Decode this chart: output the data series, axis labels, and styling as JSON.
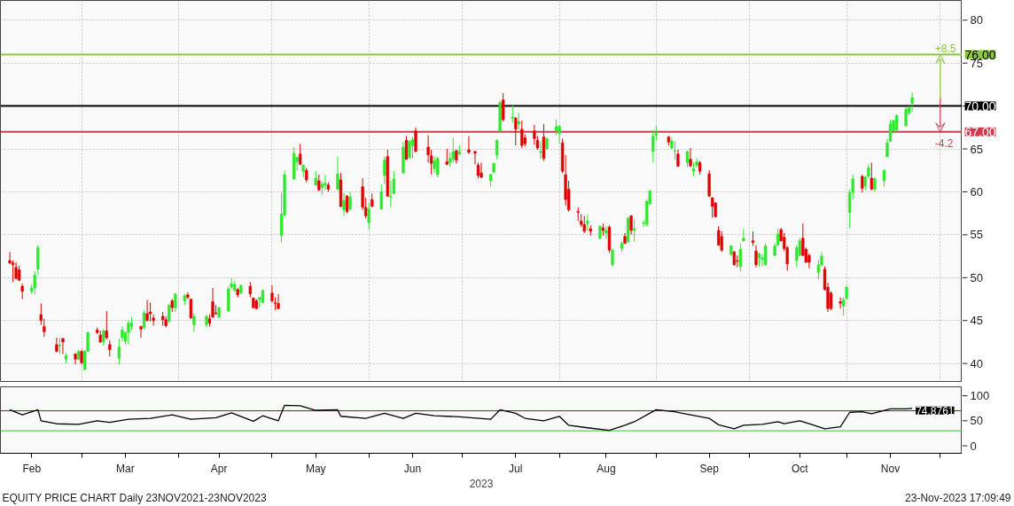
{
  "chart_data": [
    {
      "type": "candlestick",
      "x": [
        "2023-02-06",
        "2023-02-07",
        "2023-02-08",
        "2023-02-09",
        "2023-02-10",
        "2023-02-13",
        "2023-02-14",
        "2023-02-15",
        "2023-02-16",
        "2023-02-17",
        "2023-02-21",
        "2023-02-22",
        "2023-02-23",
        "2023-02-24",
        "2023-02-27",
        "2023-02-28",
        "2023-03-01",
        "2023-03-02",
        "2023-03-03",
        "2023-03-06",
        "2023-03-07",
        "2023-03-08",
        "2023-03-09",
        "2023-03-10",
        "2023-03-13",
        "2023-03-14",
        "2023-03-15",
        "2023-03-16",
        "2023-03-17",
        "2023-03-20",
        "2023-03-21",
        "2023-03-22",
        "2023-03-23",
        "2023-03-24",
        "2023-03-27",
        "2023-03-28",
        "2023-03-29",
        "2023-03-30",
        "2023-03-31",
        "2023-04-03",
        "2023-04-04",
        "2023-04-05",
        "2023-04-06",
        "2023-04-10",
        "2023-04-11",
        "2023-04-12",
        "2023-04-13",
        "2023-04-14",
        "2023-04-17",
        "2023-04-18",
        "2023-04-19",
        "2023-04-20",
        "2023-04-21",
        "2023-04-24",
        "2023-04-25",
        "2023-04-26",
        "2023-04-27",
        "2023-04-28",
        "2023-05-01",
        "2023-05-02",
        "2023-05-03",
        "2023-05-04",
        "2023-05-05",
        "2023-05-08",
        "2023-05-09",
        "2023-05-10",
        "2023-05-11",
        "2023-05-12",
        "2023-05-15",
        "2023-05-16",
        "2023-05-17",
        "2023-05-18",
        "2023-05-19",
        "2023-05-22",
        "2023-05-23",
        "2023-05-24",
        "2023-05-25",
        "2023-05-26",
        "2023-05-30",
        "2023-05-31",
        "2023-06-01",
        "2023-06-02",
        "2023-06-05",
        "2023-06-06",
        "2023-06-07",
        "2023-06-08",
        "2023-06-09",
        "2023-06-12",
        "2023-06-13",
        "2023-06-14",
        "2023-06-15",
        "2023-06-16",
        "2023-06-20",
        "2023-06-21",
        "2023-06-22",
        "2023-06-23",
        "2023-06-26",
        "2023-06-27",
        "2023-06-28",
        "2023-06-29",
        "2023-06-30",
        "2023-07-03",
        "2023-07-05",
        "2023-07-06",
        "2023-07-07",
        "2023-07-10",
        "2023-07-11",
        "2023-07-12",
        "2023-07-13",
        "2023-07-14",
        "2023-07-17",
        "2023-07-18",
        "2023-07-19",
        "2023-07-20",
        "2023-07-21",
        "2023-07-24",
        "2023-07-25",
        "2023-07-26",
        "2023-07-27",
        "2023-07-28",
        "2023-07-31",
        "2023-08-01",
        "2023-08-02",
        "2023-08-03",
        "2023-08-04",
        "2023-08-07",
        "2023-08-08",
        "2023-08-09",
        "2023-08-10",
        "2023-08-11",
        "2023-08-14",
        "2023-08-15",
        "2023-08-16",
        "2023-08-17",
        "2023-08-18",
        "2023-08-21",
        "2023-08-22",
        "2023-08-23",
        "2023-08-24",
        "2023-08-25",
        "2023-08-28",
        "2023-08-29",
        "2023-08-30",
        "2023-08-31",
        "2023-09-01",
        "2023-09-05",
        "2023-09-06",
        "2023-09-07",
        "2023-09-08",
        "2023-09-11",
        "2023-09-12",
        "2023-09-13",
        "2023-09-14",
        "2023-09-15",
        "2023-09-18",
        "2023-09-19",
        "2023-09-20",
        "2023-09-21",
        "2023-09-22",
        "2023-09-25",
        "2023-09-26",
        "2023-09-27",
        "2023-09-28",
        "2023-09-29",
        "2023-10-02",
        "2023-10-03",
        "2023-10-04",
        "2023-10-05",
        "2023-10-06",
        "2023-10-09",
        "2023-10-10",
        "2023-10-11",
        "2023-10-12",
        "2023-10-13",
        "2023-10-16",
        "2023-10-17",
        "2023-10-18",
        "2023-10-19",
        "2023-10-20",
        "2023-10-23",
        "2023-10-24",
        "2023-10-25",
        "2023-10-26",
        "2023-10-27",
        "2023-10-30",
        "2023-10-31",
        "2023-11-01",
        "2023-11-02",
        "2023-11-03",
        "2023-11-06",
        "2023-11-07",
        "2023-11-08",
        "2023-11-09",
        "2023-11-10",
        "2023-11-13",
        "2023-11-14",
        "2023-11-15",
        "2023-11-16",
        "2023-11-17",
        "2023-11-20",
        "2023-11-21",
        "2023-11-22"
      ],
      "ohlc": [
        [
          52.0,
          53.0,
          51.6,
          51.7
        ],
        [
          51.7,
          52.0,
          49.5,
          51.5
        ],
        [
          51.2,
          51.8,
          49.8,
          49.9
        ],
        [
          50.9,
          51.4,
          49.6,
          49.7
        ],
        [
          49.0,
          49.3,
          47.5,
          48.4
        ],
        [
          48.4,
          49.2,
          48.1,
          48.8
        ],
        [
          48.8,
          50.8,
          48.1,
          50.3
        ],
        [
          51.0,
          53.8,
          50.4,
          53.5
        ],
        [
          45.7,
          47.0,
          44.5,
          45.0
        ],
        [
          44.3,
          45.2,
          43.1,
          43.7
        ],
        [
          42.2,
          43.0,
          41.3,
          41.4
        ],
        [
          42.05,
          43.0,
          41.1,
          42.15
        ],
        [
          42.9,
          43.0,
          41.1,
          42.5
        ],
        [
          40.5,
          41.2,
          40.0,
          40.9
        ],
        [
          41.1,
          41.2,
          39.9,
          40.5
        ],
        [
          40.5,
          41.6,
          40.4,
          41.4
        ],
        [
          41.4,
          41.6,
          39.9,
          40.1
        ],
        [
          39.3,
          41.6,
          39.2,
          41.4
        ],
        [
          41.4,
          43.7,
          41.3,
          43.6
        ],
        [
          43.9,
          44.2,
          43.4,
          43.6
        ],
        [
          43.3,
          43.8,
          42.4,
          42.5
        ],
        [
          42.5,
          44.0,
          42.1,
          43.8
        ],
        [
          43.8,
          46.1,
          42.8,
          43.0
        ],
        [
          42.2,
          42.7,
          40.8,
          41.6
        ],
        [
          40.6,
          42.9,
          39.9,
          41.9
        ],
        [
          43.0,
          44.3,
          42.6,
          43.9
        ],
        [
          42.6,
          43.7,
          42.2,
          43.6
        ],
        [
          43.6,
          45.0,
          42.2,
          44.7
        ],
        [
          44.3,
          45.4,
          43.9,
          44.7
        ],
        [
          44.3,
          44.4,
          43.0,
          44.0
        ],
        [
          44.2,
          46.2,
          44.0,
          45.9
        ],
        [
          45.8,
          47.4,
          44.9,
          45.0
        ],
        [
          46.0,
          47.1,
          44.9,
          45.8
        ],
        [
          45.3,
          45.7,
          44.4,
          45.0
        ],
        [
          45.5,
          46.0,
          44.4,
          45.1
        ],
        [
          45.1,
          45.5,
          44.2,
          44.4
        ],
        [
          44.9,
          46.9,
          44.8,
          46.8
        ],
        [
          47.3,
          47.5,
          46.0,
          46.5
        ],
        [
          46.5,
          48.2,
          46.0,
          48.1
        ],
        [
          47.3,
          48.1,
          46.8,
          47.9
        ],
        [
          48.0,
          48.3,
          47.5,
          47.7
        ],
        [
          47.5,
          47.5,
          45.2,
          45.3
        ],
        [
          44.5,
          45.8,
          43.7,
          45.5
        ],
        [
          44.5,
          45.7,
          44.2,
          45.5
        ],
        [
          45.2,
          45.7,
          44.3,
          44.7
        ],
        [
          47.2,
          48.8,
          45.3,
          45.4
        ],
        [
          45.9,
          46.8,
          45.7,
          45.8
        ],
        [
          45.4,
          46.6,
          45.3,
          46.5
        ],
        [
          46.1,
          48.9,
          46.0,
          48.7
        ],
        [
          48.9,
          49.9,
          48.7,
          49.3
        ],
        [
          48.5,
          49.6,
          48.4,
          49.2
        ],
        [
          48.6,
          48.8,
          47.7,
          48.0
        ],
        [
          48.2,
          49.2,
          48.1,
          49.1
        ],
        [
          49.0,
          49.5,
          47.7,
          48.1
        ],
        [
          47.6,
          47.7,
          46.4,
          46.5
        ],
        [
          47.3,
          47.5,
          46.3,
          46.4
        ],
        [
          47.4,
          47.7,
          46.5,
          47.7
        ],
        [
          47.1,
          48.6,
          47.0,
          48.5
        ],
        [
          48.2,
          49.1,
          47.1,
          47.3
        ],
        [
          47.1,
          47.7,
          46.2,
          47.0
        ],
        [
          47.0,
          48.1,
          46.3,
          46.4
        ],
        [
          54.9,
          59.9,
          54.1,
          57.4
        ],
        [
          57.3,
          62.5,
          57.1,
          62.0
        ],
        [
          61.5,
          65.2,
          61.4,
          64.5
        ],
        [
          63.5,
          64.1,
          62.5,
          64.0
        ],
        [
          64.4,
          65.6,
          63.1,
          63.2
        ],
        [
          62.4,
          63.2,
          61.7,
          63.1
        ],
        [
          62.5,
          62.8,
          61.1,
          61.4
        ],
        [
          60.8,
          62.4,
          60.7,
          61.6
        ],
        [
          61.3,
          62.0,
          60.1,
          60.2
        ],
        [
          60.5,
          61.2,
          59.6,
          60.9
        ],
        [
          60.8,
          62.0,
          60.2,
          61.0
        ],
        [
          60.8,
          61.1,
          60.0,
          60.3
        ],
        [
          60.3,
          64.1,
          60.2,
          62.1
        ],
        [
          61.4,
          62.2,
          58.2,
          58.3
        ],
        [
          57.9,
          59.9,
          57.2,
          59.0
        ],
        [
          59.5,
          59.6,
          57.5,
          57.7
        ],
        [
          58.0,
          60.0,
          57.8,
          59.4
        ],
        [
          60.6,
          61.6,
          57.9,
          58.2
        ],
        [
          58.2,
          59.3,
          56.9,
          57.2
        ],
        [
          56.4,
          58.7,
          55.6,
          58.0
        ],
        [
          59.1,
          59.8,
          58.2,
          58.3
        ],
        [
          58.0,
          60.9,
          57.9,
          60.0
        ],
        [
          61.9,
          64.1,
          60.9,
          63.7
        ],
        [
          64.1,
          64.9,
          59.4,
          59.5
        ],
        [
          59.4,
          61.3,
          58.2,
          59.5
        ],
        [
          59.8,
          62.4,
          59.7,
          61.5
        ],
        [
          62.2,
          65.8,
          62.1,
          65.2
        ],
        [
          66.0,
          66.5,
          63.7,
          63.8
        ],
        [
          64.0,
          66.0,
          63.9,
          65.9
        ],
        [
          65.4,
          66.4,
          63.9,
          66.1
        ],
        [
          67.1,
          67.5,
          64.6,
          64.7
        ],
        [
          65.2,
          66.6,
          63.4,
          64.3
        ],
        [
          64.2,
          64.9,
          62.0,
          63.3
        ],
        [
          62.7,
          64.1,
          62.2,
          63.6
        ],
        [
          62.0,
          64.1,
          61.7,
          63.9
        ],
        [
          63.5,
          65.0,
          63.1,
          63.2
        ],
        [
          63.4,
          64.6,
          62.9,
          63.9
        ],
        [
          63.8,
          66.3,
          63.4,
          64.7
        ],
        [
          64.8,
          64.9,
          63.3,
          63.7
        ],
        [
          64.4,
          65.4,
          64.3,
          64.7
        ],
        [
          64.9,
          66.5,
          64.4,
          64.6
        ],
        [
          64.7,
          64.8,
          63.2,
          64.5
        ],
        [
          63.1,
          63.4,
          61.6,
          61.9
        ],
        [
          62.2,
          63.4,
          61.6,
          61.7
        ],
        [
          61.3,
          62.1,
          60.6,
          62.0
        ],
        [
          62.3,
          63.4,
          62.2,
          63.3
        ],
        [
          64.3,
          66.1,
          63.8,
          66.0
        ],
        [
          67.1,
          70.6,
          66.9,
          70.4
        ],
        [
          70.7,
          71.5,
          68.2,
          68.4
        ],
        [
          68.6,
          70.1,
          68.0,
          68.7
        ],
        [
          68.6,
          68.7,
          65.4,
          67.3
        ],
        [
          67.9,
          69.2,
          67.3,
          68.2
        ],
        [
          67.3,
          68.3,
          65.1,
          65.4
        ],
        [
          66.3,
          66.7,
          65.3,
          65.6
        ],
        [
          67.1,
          67.8,
          65.5,
          66.2
        ],
        [
          66.0,
          66.5,
          64.9,
          65.1
        ],
        [
          64.6,
          65.9,
          63.9,
          64.7
        ],
        [
          66.4,
          67.9,
          63.6,
          63.9
        ],
        [
          65.0,
          66.3,
          64.9,
          66.2
        ],
        [
          67.1,
          68.4,
          66.6,
          67.6
        ],
        [
          66.8,
          67.8,
          65.6,
          67.6
        ],
        [
          65.7,
          66.2,
          62.2,
          62.4
        ],
        [
          62.0,
          64.3,
          58.4,
          59.1
        ],
        [
          60.3,
          61.3,
          57.7,
          57.9
        ],
        [
          57.7,
          58.2,
          56.6,
          57.6
        ],
        [
          56.6,
          57.4,
          55.9,
          56.2
        ],
        [
          56.2,
          57.2,
          55.2,
          55.4
        ],
        [
          56.3,
          57.3,
          55.5,
          56.6
        ],
        [
          55.7,
          56.1,
          54.9,
          55.4
        ],
        [
          54.6,
          56.1,
          54.4,
          56.0
        ],
        [
          55.8,
          56.3,
          54.9,
          55.5
        ],
        [
          55.2,
          56.0,
          54.5,
          55.5
        ],
        [
          55.9,
          56.1,
          52.9,
          53.2
        ],
        [
          51.5,
          53.4,
          51.3,
          53.2
        ],
        [
          53.4,
          54.3,
          53.0,
          54.0
        ],
        [
          54.8,
          55.2,
          53.9,
          54.0
        ],
        [
          54.2,
          57.1,
          54.1,
          56.9
        ],
        [
          57.2,
          57.3,
          55.0,
          55.5
        ],
        [
          55.5,
          56.8,
          54.2,
          55.7
        ],
        [
          56.3,
          56.7,
          55.9,
          56.4
        ],
        [
          56.2,
          59.1,
          56.0,
          58.9
        ],
        [
          58.6,
          60.2,
          58.5,
          60.1
        ],
        [
          64.7,
          67.2,
          63.4,
          66.5
        ],
        [
          66.6,
          67.7,
          66.0,
          66.8
        ],
        [
          66.4,
          66.5,
          65.4,
          65.8
        ],
        [
          65.1,
          66.3,
          65.0,
          65.9
        ],
        [
          64.7,
          65.9,
          63.7,
          64.8
        ],
        [
          64.4,
          64.9,
          62.9,
          63.0
        ],
        [
          63.4,
          64.8,
          62.9,
          64.7
        ],
        [
          63.8,
          65.1,
          62.9,
          63.0
        ],
        [
          62.4,
          63.4,
          61.8,
          62.7
        ],
        [
          63.1,
          63.9,
          62.8,
          63.5
        ],
        [
          63.4,
          63.6,
          62.0,
          62.4
        ],
        [
          62.1,
          62.5,
          59.4,
          59.5
        ],
        [
          59.3,
          59.4,
          57.0,
          58.3
        ],
        [
          58.7,
          58.8,
          57.0,
          57.1
        ],
        [
          55.5,
          56.0,
          53.7,
          53.8
        ],
        [
          54.8,
          55.4,
          53.0,
          53.2
        ],
        [
          52.7,
          53.8,
          52.5,
          53.7
        ],
        [
          53.0,
          53.1,
          51.4,
          51.5
        ],
        [
          52.0,
          52.6,
          51.2,
          51.9
        ],
        [
          51.3,
          54.0,
          50.7,
          53.3
        ],
        [
          54.3,
          55.7,
          54.2,
          54.6
        ],
        [
          54.3,
          55.4,
          53.7,
          54.1
        ],
        [
          53.1,
          53.8,
          51.2,
          51.5
        ],
        [
          52.3,
          52.9,
          51.3,
          52.8
        ],
        [
          52.1,
          52.7,
          51.3,
          52.3
        ],
        [
          51.5,
          54.0,
          51.4,
          53.7
        ],
        [
          52.6,
          54.0,
          52.5,
          53.7
        ],
        [
          53.8,
          55.7,
          53.7,
          55.1
        ],
        [
          55.6,
          55.8,
          54.2,
          54.3
        ],
        [
          54.7,
          55.2,
          53.1,
          53.4
        ],
        [
          53.5,
          53.7,
          50.8,
          51.6
        ],
        [
          52.0,
          53.8,
          51.2,
          53.5
        ],
        [
          52.6,
          54.6,
          52.5,
          54.3
        ],
        [
          54.6,
          56.3,
          52.5,
          52.6
        ],
        [
          53.3,
          53.5,
          51.7,
          51.8
        ],
        [
          52.6,
          52.8,
          51.1,
          51.8
        ],
        [
          50.6,
          52.1,
          49.8,
          51.5
        ],
        [
          51.5,
          53.0,
          51.3,
          52.5
        ],
        [
          51.0,
          51.3,
          48.5,
          48.6
        ],
        [
          48.9,
          49.4,
          46.0,
          46.4
        ],
        [
          48.2,
          48.4,
          46.2,
          46.4
        ],
        [
          47.2,
          47.7,
          46.4,
          47.0
        ],
        [
          46.7,
          47.7,
          45.6,
          47.4
        ],
        [
          47.6,
          49.0,
          47.4,
          48.9
        ],
        [
          57.6,
          60.3,
          55.7,
          59.9
        ],
        [
          59.9,
          62.0,
          59.1,
          61.5
        ],
        [
          61.8,
          62.0,
          59.9,
          60.4
        ],
        [
          60.7,
          61.9,
          60.2,
          61.7
        ],
        [
          61.8,
          63.2,
          61.6,
          62.8
        ],
        [
          61.6,
          63.4,
          60.2,
          60.3
        ],
        [
          60.3,
          61.7,
          60.0,
          61.5
        ],
        [
          61.3,
          62.6,
          60.6,
          62.5
        ],
        [
          64.1,
          66.2,
          64.0,
          65.7
        ],
        [
          65.9,
          68.4,
          65.8,
          67.9
        ],
        [
          67.1,
          68.4,
          66.8,
          68.3
        ],
        [
          67.2,
          69.0,
          67.1,
          68.9
        ],
        [
          67.7,
          69.9,
          67.6,
          69.6
        ],
        [
          69.2,
          70.0,
          68.9,
          69.8
        ],
        [
          70.3,
          71.6,
          69.3,
          70.96
        ]
      ],
      "colors": [
        "#e00000",
        "#e00000",
        "#e00000",
        "#e00000",
        "#e00000",
        "#2ee82e",
        "#2ee82e",
        "#2ee82e",
        "#e00000",
        "#e00000",
        "#e00000",
        "#2ee82e",
        "#e00000",
        "#2ee82e",
        "#e00000",
        "#2ee82e",
        "#e00000",
        "#2ee82e",
        "#2ee82e",
        "#e00000",
        "#e00000",
        "#2ee82e",
        "#e00000",
        "#e00000",
        "#2ee82e",
        "#2ee82e",
        "#2ee82e",
        "#2ee82e",
        "#2ee82e",
        "#e00000",
        "#2ee82e",
        "#e00000",
        "#e00000",
        "#e00000",
        "#e00000",
        "#e00000",
        "#2ee82e",
        "#e00000",
        "#2ee82e",
        "#2ee82e",
        "#e00000",
        "#e00000",
        "#2ee82e",
        "#2ee82e",
        "#e00000",
        "#e00000",
        "#e00000",
        "#2ee82e",
        "#2ee82e",
        "#2ee82e",
        "#2ee82e",
        "#e00000",
        "#2ee82e",
        "#e00000",
        "#e00000",
        "#e00000",
        "#2ee82e",
        "#2ee82e",
        "#e00000",
        "#e00000",
        "#e00000",
        "#2ee82e",
        "#2ee82e",
        "#2ee82e",
        "#2ee82e",
        "#e00000",
        "#2ee82e",
        "#e00000",
        "#2ee82e",
        "#e00000",
        "#2ee82e",
        "#2ee82e",
        "#e00000",
        "#2ee82e",
        "#e00000",
        "#2ee82e",
        "#e00000",
        "#2ee82e",
        "#e00000",
        "#e00000",
        "#2ee82e",
        "#e00000",
        "#2ee82e",
        "#2ee82e",
        "#e00000",
        "#2ee82e",
        "#2ee82e",
        "#2ee82e",
        "#e00000",
        "#2ee82e",
        "#2ee82e",
        "#e00000",
        "#e00000",
        "#e00000",
        "#2ee82e",
        "#2ee82e",
        "#e00000",
        "#2ee82e",
        "#2ee82e",
        "#e00000",
        "#2ee82e",
        "#e00000",
        "#e00000",
        "#e00000",
        "#e00000",
        "#2ee82e",
        "#2ee82e",
        "#2ee82e",
        "#2ee82e",
        "#e00000",
        "#2ee82e",
        "#e00000",
        "#2ee82e",
        "#e00000",
        "#e00000",
        "#e00000",
        "#e00000",
        "#2ee82e",
        "#e00000",
        "#2ee82e",
        "#2ee82e",
        "#2ee82e",
        "#e00000",
        "#e00000",
        "#e00000",
        "#e00000",
        "#e00000",
        "#e00000",
        "#2ee82e",
        "#e00000",
        "#2ee82e",
        "#e00000",
        "#2ee82e",
        "#e00000",
        "#2ee82e",
        "#2ee82e",
        "#e00000",
        "#2ee82e",
        "#e00000",
        "#2ee82e",
        "#2ee82e",
        "#2ee82e",
        "#2ee82e",
        "#2ee82e",
        "#2ee82e",
        "#e00000",
        "#2ee82e",
        "#2ee82e",
        "#e00000",
        "#2ee82e",
        "#e00000",
        "#2ee82e",
        "#2ee82e",
        "#e00000",
        "#e00000",
        "#e00000",
        "#e00000",
        "#e00000",
        "#e00000",
        "#2ee82e",
        "#e00000",
        "#e00000",
        "#2ee82e",
        "#2ee82e",
        "#e00000",
        "#e00000",
        "#2ee82e",
        "#2ee82e",
        "#2ee82e",
        "#2ee82e",
        "#2ee82e",
        "#e00000",
        "#e00000",
        "#e00000",
        "#2ee82e",
        "#2ee82e",
        "#e00000",
        "#e00000",
        "#e00000",
        "#2ee82e",
        "#2ee82e",
        "#e00000",
        "#e00000",
        "#e00000",
        "#e00000",
        "#2ee82e",
        "#2ee82e",
        "#2ee82e",
        "#2ee82e",
        "#e00000",
        "#2ee82e",
        "#2ee82e",
        "#e00000",
        "#2ee82e",
        "#2ee82e",
        "#2ee82e",
        "#2ee82e",
        "#2ee82e",
        "#2ee82e",
        "#2ee82e",
        "#2ee82e",
        "#2ee82e"
      ],
      "xlim": [
        "2023-02-03",
        "2023-12-08"
      ],
      "xticks": [
        {
          "value": "2023-03-01",
          "label": null
        },
        {
          "value": "2023-04-01",
          "label": null
        },
        {
          "value": "2023-05-01",
          "label": null
        },
        {
          "value": "2023-06-01",
          "label": null
        },
        {
          "value": "2023-07-01",
          "label": null
        },
        {
          "value": "2023-08-01",
          "label": null
        },
        {
          "value": "2023-09-01",
          "label": null
        },
        {
          "value": "2023-10-01",
          "label": null
        },
        {
          "value": "2023-11-01",
          "label": null
        },
        {
          "value": "2023-12-01",
          "label": null
        }
      ],
      "ylim": [
        37.9,
        82.3
      ],
      "yticks": [
        40,
        45,
        50,
        55,
        60,
        65,
        {
          "value": 70,
          "label": null
        },
        75,
        80
      ],
      "grid": true,
      "tick_labels": "y",
      "ref_lines": [
        {
          "axis": "y",
          "value": 76,
          "label": "76.00",
          "color": "#8cc63f"
        },
        {
          "axis": "y",
          "value": 70,
          "label": "70.00",
          "color": "#000000"
        },
        {
          "axis": "y",
          "value": 67,
          "label": "67.00",
          "color": "#d23a50"
        }
      ],
      "annotations": [
        {
          "text": "+8.5",
          "x": "2023-12-01",
          "y": 76
        },
        {
          "text": "-4.2",
          "x": "2023-12-01",
          "y": 67
        }
      ]
    },
    {
      "type": "line",
      "series": [
        {
          "color": "#000000",
          "x": [
            "2023-02-06",
            "2023-02-10",
            "2023-02-15",
            "2023-02-16",
            "2023-02-21",
            "2023-02-28",
            "2023-03-06",
            "2023-03-10",
            "2023-03-16",
            "2023-03-23",
            "2023-03-30",
            "2023-04-05",
            "2023-04-13",
            "2023-04-18",
            "2023-04-25",
            "2023-04-28",
            "2023-05-03",
            "2023-05-05",
            "2023-05-10",
            "2023-05-15",
            "2023-05-22",
            "2023-05-23",
            "2023-05-31",
            "2023-06-06",
            "2023-06-12",
            "2023-06-16",
            "2023-06-22",
            "2023-06-30",
            "2023-07-10",
            "2023-07-13",
            "2023-07-18",
            "2023-07-21",
            "2023-07-27",
            "2023-08-01",
            "2023-08-04",
            "2023-08-10",
            "2023-08-17",
            "2023-08-22",
            "2023-08-25",
            "2023-09-01",
            "2023-09-07",
            "2023-09-12",
            "2023-09-18",
            "2023-09-21",
            "2023-09-26",
            "2023-09-29",
            "2023-10-05",
            "2023-10-10",
            "2023-10-12",
            "2023-10-17",
            "2023-10-20",
            "2023-10-25",
            "2023-10-30",
            "2023-11-02",
            "2023-11-06",
            "2023-11-09",
            "2023-11-15",
            "2023-11-20",
            "2023-11-22"
          ],
          "values": [
            72,
            62,
            72,
            50,
            44,
            43,
            50,
            47,
            53,
            55,
            62,
            53,
            56,
            66,
            49,
            60,
            50,
            81,
            80,
            71,
            72,
            59,
            55,
            65,
            55,
            65,
            60,
            58,
            53,
            72,
            65,
            55,
            50,
            59,
            41,
            36,
            31,
            41,
            48,
            72,
            68,
            62,
            55,
            42,
            34,
            41,
            43,
            48,
            44,
            50,
            44,
            34,
            38,
            67,
            68,
            64,
            74,
            74,
            74.8761
          ],
          "value_labels": [
            null,
            null,
            null,
            null,
            null,
            null,
            null,
            null,
            null,
            null,
            null,
            null,
            null,
            null,
            null,
            null,
            null,
            null,
            null,
            null,
            null,
            null,
            null,
            null,
            null,
            null,
            null,
            null,
            null,
            null,
            null,
            null,
            null,
            null,
            null,
            null,
            null,
            null,
            null,
            null,
            null,
            null,
            null,
            null,
            null,
            null,
            null,
            null,
            null,
            null,
            null,
            null,
            null,
            null,
            null,
            null,
            null,
            null,
            "74.8761"
          ]
        }
      ],
      "xlim": [
        "2023-02-03",
        "2023-12-08"
      ],
      "xticks": [
        {
          "value": "2023-03-01",
          "label": null
        },
        {
          "value": "2023-04-01",
          "label": null
        },
        {
          "value": "2023-05-01",
          "label": null
        },
        {
          "value": "2023-06-01",
          "label": null
        },
        {
          "value": "2023-07-01",
          "label": null
        },
        {
          "value": "2023-08-01",
          "label": null
        },
        {
          "value": "2023-09-01",
          "label": null
        },
        {
          "value": "2023-10-01",
          "label": null
        },
        {
          "value": "2023-11-01",
          "label": null
        },
        {
          "value": "2023-12-01",
          "label": null
        },
        {
          "value": "2023-02-13",
          "label": "Feb"
        },
        {
          "value": "2023-03-15",
          "label": "Mar"
        },
        {
          "value": "2023-04-14",
          "label": "Apr"
        },
        {
          "value": "2023-05-15",
          "label": "May"
        },
        {
          "value": "2023-06-15",
          "label": "Jun"
        },
        {
          "value": "2023-07-18",
          "label": "Jul"
        },
        {
          "value": "2023-08-16",
          "label": "Aug"
        },
        {
          "value": "2023-09-18",
          "label": "Sep"
        },
        {
          "value": "2023-10-17",
          "label": "Oct"
        },
        {
          "value": "2023-11-15",
          "label": "Nov"
        }
      ],
      "xlabel": "2023",
      "ylim": [
        -15,
        118
      ],
      "yticks": [
        0,
        50,
        100
      ],
      "ref_lines": [
        {
          "axis": "y",
          "value": 70,
          "color": "#c00000"
        },
        {
          "axis": "y",
          "value": 30,
          "color": "#33cc33"
        }
      ],
      "annotations": [
        "EQUITY PRICE CHART  Daily 23NOV2021-23NOV2023",
        "23-Nov-2023 17:09:49"
      ]
    }
  ]
}
